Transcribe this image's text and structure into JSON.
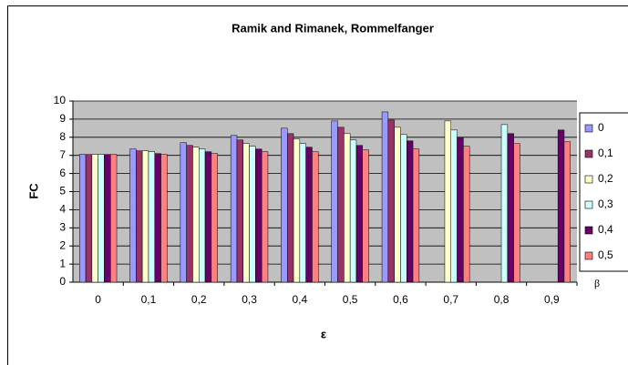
{
  "chart_data": {
    "type": "bar",
    "title": "Ramik and Rimanek, Rommelfanger",
    "x_label": "ε",
    "y_label": "FC",
    "legend_title": "β",
    "categories": [
      "0",
      "0,1",
      "0,2",
      "0,3",
      "0,4",
      "0,5",
      "0,6",
      "0,7",
      "0,8",
      "0,9"
    ],
    "series": [
      {
        "name": "0",
        "color": "#9999ff",
        "values": [
          7.05,
          7.35,
          7.7,
          8.1,
          8.5,
          8.9,
          9.4,
          null,
          null,
          null
        ]
      },
      {
        "name": "0,1",
        "color": "#993366",
        "values": [
          7.05,
          7.25,
          7.55,
          7.85,
          8.2,
          8.55,
          8.95,
          null,
          null,
          null
        ]
      },
      {
        "name": "0,2",
        "color": "#ffffcc",
        "values": [
          7.05,
          7.25,
          7.45,
          7.65,
          7.9,
          8.2,
          8.55,
          8.9,
          null,
          null
        ]
      },
      {
        "name": "0,3",
        "color": "#ccffff",
        "values": [
          7.05,
          7.2,
          7.35,
          7.5,
          7.65,
          7.85,
          8.15,
          8.4,
          8.7,
          null
        ]
      },
      {
        "name": "0,4",
        "color": "#660066",
        "values": [
          7.05,
          7.1,
          7.2,
          7.35,
          7.45,
          7.55,
          7.8,
          8.0,
          8.2,
          8.4
        ]
      },
      {
        "name": "0,5",
        "color": "#ff8080",
        "values": [
          7.05,
          7.05,
          7.1,
          7.2,
          7.2,
          7.3,
          7.35,
          7.5,
          7.65,
          7.75
        ]
      }
    ],
    "ylim": [
      0,
      10
    ],
    "yticks": [
      0,
      1,
      2,
      3,
      4,
      5,
      6,
      7,
      8,
      9,
      10
    ],
    "grid": true,
    "plot_background": "#c0c0c0",
    "legend": "right"
  }
}
